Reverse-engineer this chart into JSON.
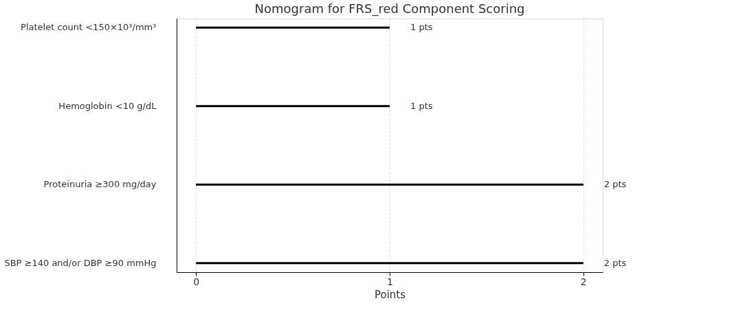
{
  "chart_data": {
    "type": "bar",
    "orientation": "horizontal",
    "title": "Nomogram for FRS_red Component Scoring",
    "xlabel": "Points",
    "categories": [
      "Platelet count <150×10³/mm³",
      "Hemoglobin <10 g/dL",
      "Proteinuria ≥300 mg/day",
      "SBP ≥140 and/or DBP ≥90 mmHg"
    ],
    "values": [
      1,
      1,
      2,
      2
    ],
    "color": "#000000",
    "value_labels": [
      "1 pts",
      "1 pts",
      "2 pts",
      "2 pts"
    ],
    "xlim": [
      -0.1,
      2.1
    ],
    "xticks": [
      0,
      1,
      2
    ],
    "grid": "x"
  }
}
